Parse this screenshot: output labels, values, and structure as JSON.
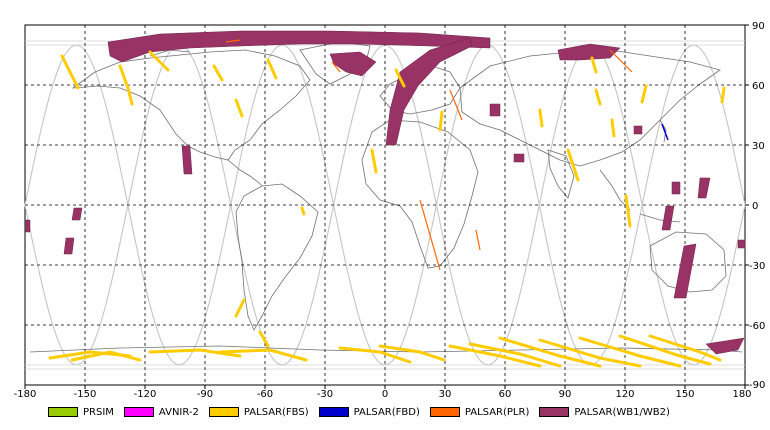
{
  "map": {
    "x_ticks": [
      "-180",
      "-150",
      "-120",
      "-90",
      "-60",
      "-30",
      "0",
      "30",
      "60",
      "90",
      "120",
      "150",
      "180"
    ],
    "y_ticks": [
      "90",
      "60",
      "30",
      "0",
      "-30",
      "-60",
      "-90"
    ]
  },
  "legend": [
    {
      "label": "PRSIM",
      "color": "#99cc00"
    },
    {
      "label": "AVNIR-2",
      "color": "#ff00ff"
    },
    {
      "label": "PALSAR(FBS)",
      "color": "#ffcc00"
    },
    {
      "label": "PALSAR(FBD)",
      "color": "#0000cc"
    },
    {
      "label": "PALSAR(PLR)",
      "color": "#ff6600"
    },
    {
      "label": "PALSAR(WB1/WB2)",
      "color": "#993366"
    }
  ]
}
